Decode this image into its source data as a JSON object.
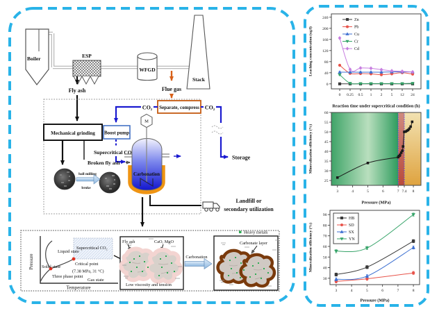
{
  "style": {
    "panel_border": "#29b3e8",
    "co2_line_blue": "#1a1ad0",
    "orange_accent": "#c55a11",
    "vessel_jacket_orange": "#ef9413",
    "heavy_metal_green": "#2faa54",
    "carbonate_brown": "#7a3a0c"
  },
  "diagram": {
    "boiler": "Boiler",
    "esp": "ESP",
    "wfgd": "WFGD",
    "stack": "Stack",
    "fly_ash": "Fly ash",
    "flue_gas": "Flue gas",
    "co2": "CO₂",
    "separate_compress": "Separate, compress",
    "mechanical_grinding": "Mechanical grinding",
    "boost_pump": "Boost pump",
    "supercritical_co2": "Supercritical CO₂",
    "broken_fly_ash": "Broken fly ash",
    "ball_milling": "ball milling",
    "broke": "broke",
    "motor": "M",
    "carbonation": "Carbonation",
    "storage": "Storage",
    "landfill_1": "Landfill or",
    "landfill_2": "secondary utilization",
    "phase": {
      "pressure": "Pressure",
      "temperature": "Temperature",
      "liquid": "Liquid state",
      "solid": "Solid state",
      "supercritical": "Supercritical CO₂",
      "critical_point": "Critical point",
      "critical_value": "(7.38 MPa, 31 °C)",
      "three_phase": "Three phase point",
      "gas": "Gas state"
    },
    "micro": {
      "fly_ash": "Fly ash",
      "cao_mgo": "CaO, MgO",
      "low_viscosity": "Low viscosity and tension",
      "carbonation": "Carbonation",
      "heavy_metals": "Heavy metals",
      "carbonate_layer": "Carbonate layer"
    }
  },
  "chart_data": [
    {
      "id": "leaching-vs-time",
      "type": "line",
      "title": "",
      "xlabel": "Reaction time under supercritical condition (h)",
      "ylabel": "Leaching concentration (ug/l)",
      "x_type": "category",
      "categories": [
        "0",
        "0.25",
        "0.5",
        "1",
        "2",
        "5",
        "12",
        "24"
      ],
      "ylim": [
        -18,
        252
      ],
      "yticks": [
        0,
        40,
        80,
        120,
        160,
        200,
        240
      ],
      "err": 3,
      "legend": {
        "position": "top-left",
        "border": false
      },
      "series": [
        {
          "name": "Zn",
          "color": "#3a3a3a",
          "marker": "square",
          "values": [
            0,
            0,
            0,
            0,
            0,
            0,
            0,
            0
          ]
        },
        {
          "name": "Pb",
          "color": "#e8534a",
          "marker": "circle",
          "values": [
            67,
            38,
            37,
            36,
            33,
            36,
            40,
            35
          ]
        },
        {
          "name": "Cu",
          "color": "#3c6fd1",
          "marker": "triangle-up",
          "values": [
            42,
            42,
            42,
            42,
            42,
            43,
            43,
            43
          ]
        },
        {
          "name": "Cr",
          "color": "#35a368",
          "marker": "triangle-down",
          "values": [
            33,
            2,
            1,
            1,
            1,
            1,
            1,
            2
          ]
        },
        {
          "name": "Cd",
          "color": "#c77ee0",
          "marker": "diamond",
          "values": [
            165,
            52,
            57,
            56,
            51,
            47,
            45,
            43
          ]
        }
      ]
    },
    {
      "id": "mineralization-vs-pressure",
      "type": "line",
      "title": "",
      "xlabel": "Pressure (MPa)",
      "ylabel": "Mineralization efficiency (%)",
      "x_type": "linear",
      "xlim": [
        2.6,
        8.5
      ],
      "xticks": [
        3,
        4,
        5,
        6,
        7,
        7.4,
        8
      ],
      "ylim": [
        22.5,
        60
      ],
      "yticks": [
        25,
        30,
        35,
        40,
        45,
        50,
        55,
        60
      ],
      "zones": [
        {
          "x0": 2.6,
          "x1": 7,
          "dir": "h",
          "stops": [
            [
              0,
              "#3fa468"
            ],
            [
              0.55,
              "#b9dfbe"
            ],
            [
              1,
              "#2f9c5e"
            ]
          ]
        },
        {
          "x0": 7,
          "x1": 7.4,
          "dir": "v",
          "stops": [
            [
              0,
              "#cf8a7e"
            ],
            [
              1,
              "#b84a3c"
            ]
          ]
        },
        {
          "x0": 7.4,
          "x1": 8.5,
          "dir": "v",
          "stops": [
            [
              0,
              "#f2e2b2"
            ],
            [
              1,
              "#dfa33f"
            ]
          ]
        }
      ],
      "vlines": [
        {
          "x": 7,
          "color": "#3b3bff"
        },
        {
          "x": 7.4,
          "color": "#3b3bff"
        }
      ],
      "series": [
        {
          "name": "Mineralization efficiency",
          "color": "#1a1a1a",
          "marker": "square",
          "points": [
            [
              3,
              26.5
            ],
            [
              5,
              34
            ],
            [
              7,
              37
            ],
            [
              7.05,
              37.6
            ],
            [
              7.12,
              38.2
            ],
            [
              7.2,
              39.3
            ],
            [
              7.27,
              40.3
            ],
            [
              7.32,
              42.5
            ],
            [
              7.4,
              50
            ],
            [
              7.5,
              50.2
            ],
            [
              7.58,
              50.6
            ],
            [
              7.66,
              51
            ],
            [
              7.74,
              51.7
            ],
            [
              7.82,
              52.7
            ],
            [
              7.92,
              55.2
            ]
          ]
        }
      ]
    },
    {
      "id": "mineralization-by-province",
      "type": "line",
      "title": "",
      "xlabel": "Pressure (MPa)",
      "ylabel": "Mineralization efficiency (%)",
      "x_type": "linear",
      "xlim": [
        2.6,
        8.4
      ],
      "xticks": [
        3,
        4,
        5,
        6,
        7,
        8
      ],
      "ylim": [
        24,
        94
      ],
      "yticks": [
        30,
        40,
        50,
        60,
        70,
        80,
        90
      ],
      "err": 1.5,
      "legend": {
        "position": "top-left",
        "border": true
      },
      "series": [
        {
          "name": "HB",
          "color": "#3a3a3a",
          "marker": "square",
          "points": [
            [
              3,
              33.5
            ],
            [
              5,
              40.5
            ],
            [
              8,
              65
            ]
          ]
        },
        {
          "name": "SD",
          "color": "#e8534a",
          "marker": "circle",
          "points": [
            [
              3,
              27
            ],
            [
              5,
              29.5
            ],
            [
              8,
              35
            ]
          ]
        },
        {
          "name": "SX",
          "color": "#3c6fd1",
          "marker": "triangle-up",
          "points": [
            [
              3,
              29
            ],
            [
              5,
              32
            ],
            [
              8,
              59
            ]
          ]
        },
        {
          "name": "YN",
          "color": "#35a368",
          "marker": "triangle-down",
          "points": [
            [
              3,
              55.5
            ],
            [
              5,
              58.5
            ],
            [
              8,
              90
            ]
          ]
        }
      ]
    }
  ]
}
